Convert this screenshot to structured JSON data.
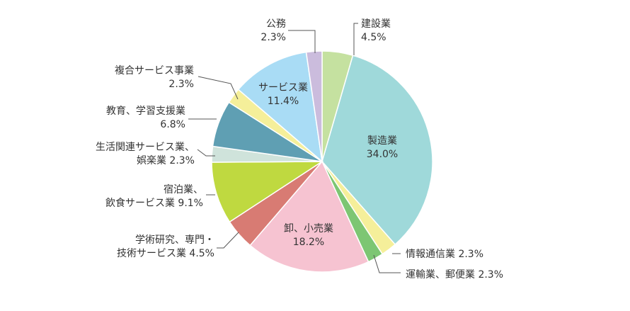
{
  "chart_data": {
    "type": "pie",
    "title": "",
    "unit": "%",
    "start": "12 o'clock, clockwise",
    "slices": [
      {
        "label": "建設業",
        "value": 4.5,
        "value_text": "4.5%",
        "color": "#c5e1a0"
      },
      {
        "label": "製造業",
        "value": 34.0,
        "value_text": "34.0%",
        "color": "#9fd9da"
      },
      {
        "label": "情報通信業",
        "value": 2.3,
        "value_text": "2.3%",
        "color": "#f5ef9a"
      },
      {
        "label": "運輸業、郵便業",
        "value": 2.3,
        "value_text": "2.3%",
        "color": "#7dc673"
      },
      {
        "label": "卸、小売業",
        "value": 18.2,
        "value_text": "18.2%",
        "color": "#f6c3d1"
      },
      {
        "label": "学術研究、専門・技術サービス業",
        "value": 4.5,
        "value_text": "4.5%",
        "color": "#d87b73"
      },
      {
        "label": "宿泊業、飲食サービス業",
        "value": 9.1,
        "value_text": "9.1%",
        "color": "#bfd940"
      },
      {
        "label": "生活関連サービス業、娯楽業",
        "value": 2.3,
        "value_text": "2.3%",
        "color": "#cfe3db"
      },
      {
        "label": "教育、学習支援業",
        "value": 6.8,
        "value_text": "6.8%",
        "color": "#5f9fb3"
      },
      {
        "label": "複合サービス事業",
        "value": 2.3,
        "value_text": "2.3%",
        "color": "#f5ef9a"
      },
      {
        "label": "サービス業",
        "value": 11.4,
        "value_text": "11.4%",
        "color": "#a9dcf5"
      },
      {
        "label": "公務",
        "value": 2.3,
        "value_text": "2.3%",
        "color": "#cbbcdd"
      }
    ],
    "label_lines": [
      {
        "line1": "建設業",
        "line2": "4.5%"
      },
      {
        "line1": "製造業",
        "line2": "34.0%"
      },
      {
        "line1": "情報通信業 2.3%",
        "line2": ""
      },
      {
        "line1": "運輸業、郵便業 2.3%",
        "line2": ""
      },
      {
        "line1": "卸、小売業",
        "line2": "18.2%"
      },
      {
        "line1": "学術研究、専門・",
        "line2": "技術サービス業 4.5%"
      },
      {
        "line1": "宿泊業、",
        "line2": "飲食サービス業 9.1%"
      },
      {
        "line1": "生活関連サービス業、",
        "line2": "娯楽業 2.3%"
      },
      {
        "line1": "教育、学習支援業",
        "line2": "6.8%"
      },
      {
        "line1": "複合サービス事業",
        "line2": "2.3%"
      },
      {
        "line1": "サービス業",
        "line2": "11.4%"
      },
      {
        "line1": "公務",
        "line2": "2.3%"
      }
    ]
  }
}
